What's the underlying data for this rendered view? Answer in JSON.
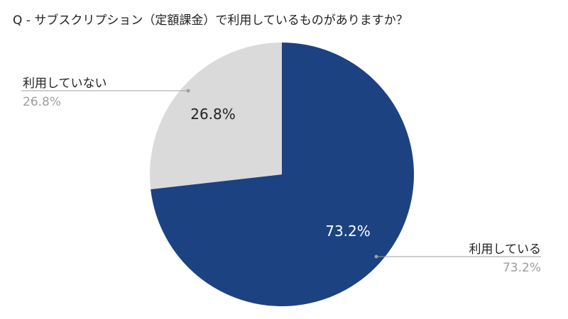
{
  "chart_data": {
    "type": "pie",
    "title": "Q - サブスクリプション（定額課金）で利用しているものがありますか？",
    "slices": [
      {
        "name": "利用している",
        "value": 73.2,
        "label": "73.2%",
        "color": "#1c4282",
        "label_color": "#ffffff"
      },
      {
        "name": "利用していない",
        "value": 26.8,
        "label": "26.8%",
        "color": "#dadada",
        "label_color": "#222222"
      }
    ],
    "start": "12 o'clock",
    "direction": "clockwise",
    "legend": "leader-line labels"
  }
}
